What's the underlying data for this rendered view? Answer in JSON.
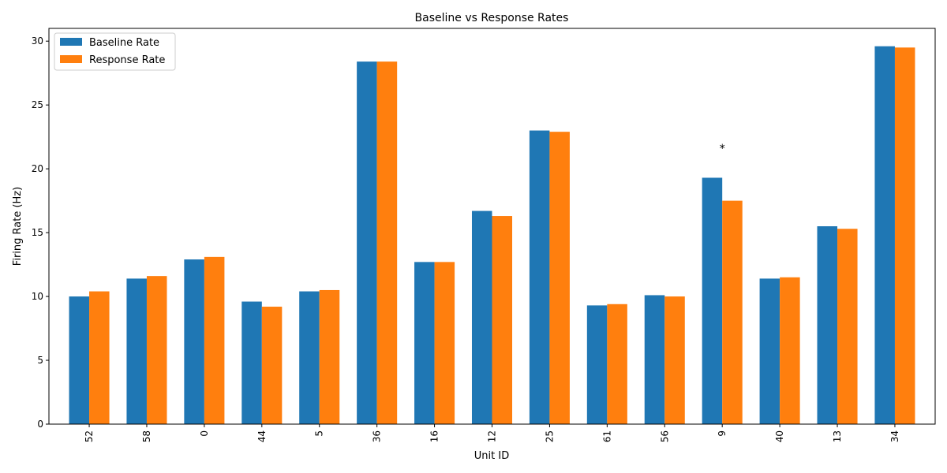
{
  "chart_data": {
    "type": "bar",
    "title": "Baseline vs Response Rates",
    "xlabel": "Unit ID",
    "ylabel": "Firing Rate (Hz)",
    "ylim": [
      0,
      31
    ],
    "yticks": [
      0,
      5,
      10,
      15,
      20,
      25,
      30
    ],
    "categories": [
      "52",
      "58",
      "0",
      "44",
      "5",
      "36",
      "16",
      "12",
      "25",
      "61",
      "56",
      "9",
      "40",
      "13",
      "34"
    ],
    "series": [
      {
        "name": "Baseline Rate",
        "color": "#1f77b4",
        "values": [
          10.0,
          11.4,
          12.9,
          9.6,
          10.4,
          28.4,
          12.7,
          16.7,
          23.0,
          9.3,
          10.1,
          19.3,
          11.4,
          15.5,
          29.6
        ]
      },
      {
        "name": "Response Rate",
        "color": "#ff7f0e",
        "values": [
          10.4,
          11.6,
          13.1,
          9.2,
          10.5,
          28.4,
          12.7,
          16.3,
          22.9,
          9.4,
          10.0,
          17.5,
          11.5,
          15.3,
          29.5
        ]
      }
    ],
    "annotations": [
      {
        "category": "9",
        "text": "*",
        "y": 21.6
      }
    ],
    "legend": "top-left",
    "grid": false
  }
}
